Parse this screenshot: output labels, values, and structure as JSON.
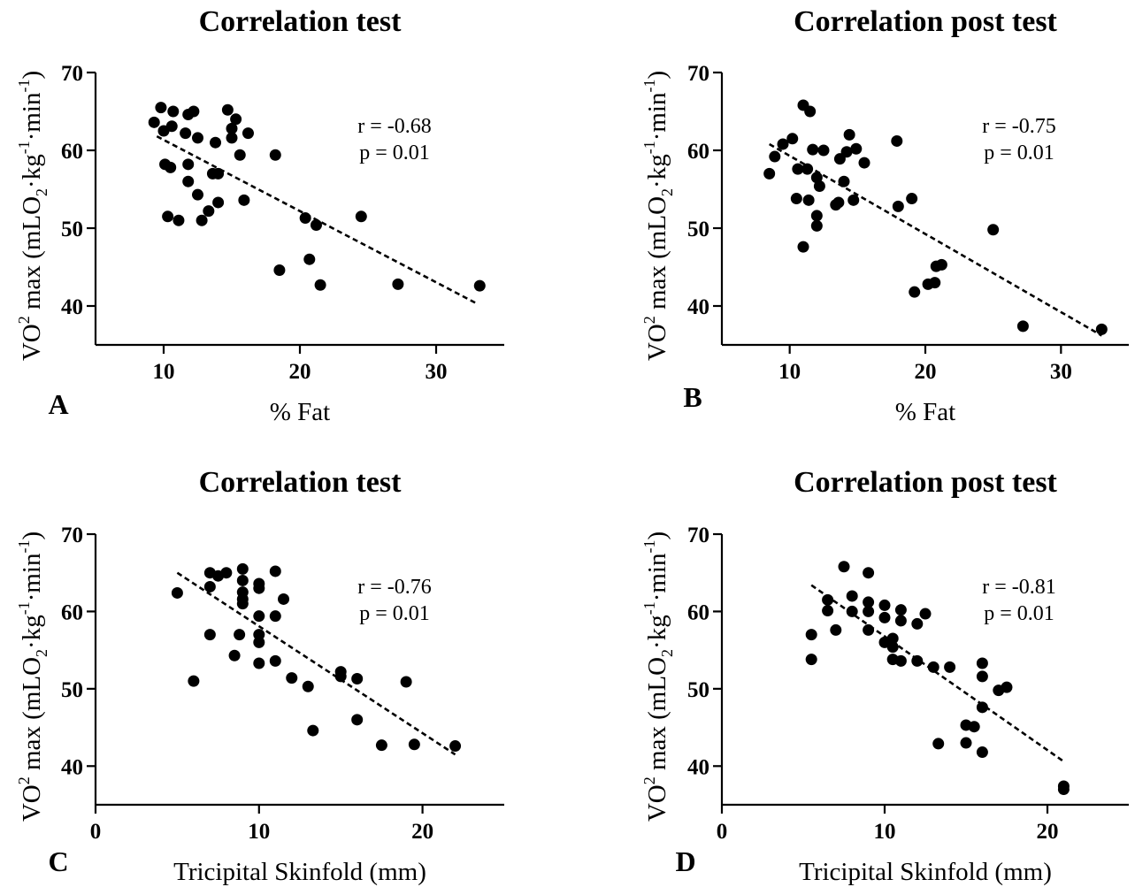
{
  "chart_data": [
    {
      "id": "A",
      "type": "scatter",
      "panel_label": "A",
      "title": "Correlation test",
      "xlabel": "% Fat",
      "ylabel_main": "VO",
      "ylabel_sup": "2",
      "ylabel_rest": " max (mLO",
      "ylabel_sub": "2",
      "ylabel_unit_a": "·kg",
      "ylabel_sup2": "-1",
      "ylabel_unit_b": "·min",
      "ylabel_sup3": "-1",
      "ylabel_close": ")",
      "xlim": [
        5,
        35
      ],
      "ylim": [
        35,
        70
      ],
      "xticks": [
        10,
        20,
        30
      ],
      "yticks": [
        40,
        50,
        60,
        70
      ],
      "annotation_r": "r = -0.68",
      "annotation_p": "p = 0.01",
      "trendline": {
        "x": [
          9.5,
          33
        ],
        "y": [
          61.8,
          40.3
        ]
      },
      "points": [
        {
          "x": 9.3,
          "y": 63.6
        },
        {
          "x": 9.8,
          "y": 65.5
        },
        {
          "x": 10.0,
          "y": 62.5
        },
        {
          "x": 10.6,
          "y": 63.1
        },
        {
          "x": 10.7,
          "y": 65.0
        },
        {
          "x": 11.6,
          "y": 62.2
        },
        {
          "x": 11.8,
          "y": 64.6
        },
        {
          "x": 12.2,
          "y": 65.0
        },
        {
          "x": 12.5,
          "y": 61.6
        },
        {
          "x": 10.1,
          "y": 58.2
        },
        {
          "x": 10.5,
          "y": 57.8
        },
        {
          "x": 11.8,
          "y": 58.2
        },
        {
          "x": 11.8,
          "y": 56.0
        },
        {
          "x": 12.5,
          "y": 54.3
        },
        {
          "x": 10.3,
          "y": 51.5
        },
        {
          "x": 11.1,
          "y": 51.0
        },
        {
          "x": 12.8,
          "y": 51.0
        },
        {
          "x": 13.3,
          "y": 52.2
        },
        {
          "x": 13.6,
          "y": 57.0
        },
        {
          "x": 14.0,
          "y": 57.0
        },
        {
          "x": 13.8,
          "y": 61.0
        },
        {
          "x": 14.0,
          "y": 53.3
        },
        {
          "x": 14.7,
          "y": 65.2
        },
        {
          "x": 15.0,
          "y": 62.8
        },
        {
          "x": 15.0,
          "y": 61.6
        },
        {
          "x": 15.3,
          "y": 64.0
        },
        {
          "x": 15.6,
          "y": 59.4
        },
        {
          "x": 15.9,
          "y": 53.6
        },
        {
          "x": 16.2,
          "y": 62.2
        },
        {
          "x": 18.2,
          "y": 59.4
        },
        {
          "x": 18.5,
          "y": 44.6
        },
        {
          "x": 20.4,
          "y": 51.3
        },
        {
          "x": 20.7,
          "y": 46.0
        },
        {
          "x": 21.2,
          "y": 50.4
        },
        {
          "x": 21.5,
          "y": 42.7
        },
        {
          "x": 24.5,
          "y": 51.5
        },
        {
          "x": 27.2,
          "y": 42.8
        },
        {
          "x": 33.2,
          "y": 42.6
        }
      ]
    },
    {
      "id": "B",
      "type": "scatter",
      "panel_label": "B",
      "title": "Correlation post test",
      "xlabel": "% Fat",
      "ylabel_main": "VO",
      "ylabel_sup": "2",
      "ylabel_rest": " max (mLO",
      "ylabel_sub": "2",
      "ylabel_unit_a": "·kg",
      "ylabel_sup2": "-1",
      "ylabel_unit_b": "·min",
      "ylabel_sup3": "-1",
      "ylabel_close": ")",
      "xlim": [
        5,
        35
      ],
      "ylim": [
        35,
        70
      ],
      "xticks": [
        10,
        20,
        30
      ],
      "yticks": [
        40,
        50,
        60,
        70
      ],
      "annotation_r": "r = -0.75",
      "annotation_p": "p = 0.01",
      "trendline": {
        "x": [
          8.5,
          33
        ],
        "y": [
          60.8,
          36.2
        ]
      },
      "points": [
        {
          "x": 8.5,
          "y": 57.0
        },
        {
          "x": 8.9,
          "y": 59.2
        },
        {
          "x": 9.5,
          "y": 60.8
        },
        {
          "x": 10.2,
          "y": 61.5
        },
        {
          "x": 10.5,
          "y": 53.8
        },
        {
          "x": 10.6,
          "y": 57.6
        },
        {
          "x": 11.0,
          "y": 65.8
        },
        {
          "x": 11.0,
          "y": 47.6
        },
        {
          "x": 11.3,
          "y": 57.6
        },
        {
          "x": 11.4,
          "y": 53.6
        },
        {
          "x": 11.5,
          "y": 65.0
        },
        {
          "x": 11.7,
          "y": 60.1
        },
        {
          "x": 12.0,
          "y": 56.5
        },
        {
          "x": 12.0,
          "y": 51.6
        },
        {
          "x": 12.0,
          "y": 50.3
        },
        {
          "x": 12.2,
          "y": 55.4
        },
        {
          "x": 12.5,
          "y": 60.0
        },
        {
          "x": 13.4,
          "y": 53.0
        },
        {
          "x": 13.6,
          "y": 53.3
        },
        {
          "x": 13.7,
          "y": 58.9
        },
        {
          "x": 14.0,
          "y": 56.0
        },
        {
          "x": 14.2,
          "y": 59.8
        },
        {
          "x": 14.4,
          "y": 62.0
        },
        {
          "x": 14.7,
          "y": 53.6
        },
        {
          "x": 14.9,
          "y": 60.2
        },
        {
          "x": 15.5,
          "y": 58.4
        },
        {
          "x": 17.9,
          "y": 61.2
        },
        {
          "x": 18.0,
          "y": 52.8
        },
        {
          "x": 19.0,
          "y": 53.8
        },
        {
          "x": 19.2,
          "y": 41.8
        },
        {
          "x": 20.2,
          "y": 42.8
        },
        {
          "x": 20.7,
          "y": 43.0
        },
        {
          "x": 20.8,
          "y": 45.1
        },
        {
          "x": 21.2,
          "y": 45.3
        },
        {
          "x": 25.0,
          "y": 49.8
        },
        {
          "x": 27.2,
          "y": 37.4
        },
        {
          "x": 33.0,
          "y": 37.0
        }
      ]
    },
    {
      "id": "C",
      "type": "scatter",
      "panel_label": "C",
      "title": "Correlation test",
      "xlabel": "Tricipital Skinfold (mm)",
      "ylabel_main": "VO",
      "ylabel_sup": "2",
      "ylabel_rest": " max (mLO",
      "ylabel_sub": "2",
      "ylabel_unit_a": "·kg",
      "ylabel_sup2": "-1",
      "ylabel_unit_b": "·min",
      "ylabel_sup3": "-1",
      "ylabel_close": ")",
      "xlim": [
        0,
        25
      ],
      "ylim": [
        35,
        70
      ],
      "xticks": [
        0,
        10,
        20
      ],
      "yticks": [
        40,
        50,
        60,
        70
      ],
      "annotation_r": "r = -0.76",
      "annotation_p": "p = 0.01",
      "trendline": {
        "x": [
          5,
          22
        ],
        "y": [
          65.0,
          41.5
        ]
      },
      "points": [
        {
          "x": 5.0,
          "y": 62.4
        },
        {
          "x": 6.0,
          "y": 51.0
        },
        {
          "x": 7.0,
          "y": 65.0
        },
        {
          "x": 7.0,
          "y": 63.2
        },
        {
          "x": 7.0,
          "y": 57.0
        },
        {
          "x": 7.5,
          "y": 64.6
        },
        {
          "x": 8.0,
          "y": 65.0
        },
        {
          "x": 8.5,
          "y": 54.3
        },
        {
          "x": 8.8,
          "y": 57.0
        },
        {
          "x": 9.0,
          "y": 65.5
        },
        {
          "x": 9.0,
          "y": 64.0
        },
        {
          "x": 9.0,
          "y": 62.5
        },
        {
          "x": 9.0,
          "y": 61.6
        },
        {
          "x": 9.0,
          "y": 61.0
        },
        {
          "x": 10.0,
          "y": 63.6
        },
        {
          "x": 10.0,
          "y": 63.0
        },
        {
          "x": 10.0,
          "y": 59.4
        },
        {
          "x": 10.0,
          "y": 57.0
        },
        {
          "x": 10.0,
          "y": 56.0
        },
        {
          "x": 10.0,
          "y": 53.3
        },
        {
          "x": 11.0,
          "y": 65.2
        },
        {
          "x": 11.0,
          "y": 59.4
        },
        {
          "x": 11.0,
          "y": 53.6
        },
        {
          "x": 11.5,
          "y": 61.6
        },
        {
          "x": 12.0,
          "y": 51.4
        },
        {
          "x": 13.0,
          "y": 50.3
        },
        {
          "x": 13.3,
          "y": 44.6
        },
        {
          "x": 15.0,
          "y": 52.2
        },
        {
          "x": 15.0,
          "y": 51.6
        },
        {
          "x": 16.0,
          "y": 51.3
        },
        {
          "x": 16.0,
          "y": 46.0
        },
        {
          "x": 17.5,
          "y": 42.7
        },
        {
          "x": 19.0,
          "y": 50.9
        },
        {
          "x": 19.5,
          "y": 42.8
        },
        {
          "x": 22.0,
          "y": 42.6
        }
      ]
    },
    {
      "id": "D",
      "type": "scatter",
      "panel_label": "D",
      "title": "Correlation post test",
      "xlabel": "Tricipital Skinfold (mm)",
      "ylabel_main": "VO",
      "ylabel_sup": "2",
      "ylabel_rest": " max (mLO",
      "ylabel_sub": "2",
      "ylabel_unit_a": "·kg",
      "ylabel_sup2": "-1",
      "ylabel_unit_b": "·min",
      "ylabel_sup3": "-1",
      "ylabel_close": ")",
      "xlim": [
        0,
        25
      ],
      "ylim": [
        35,
        70
      ],
      "xticks": [
        0,
        10,
        20
      ],
      "yticks": [
        40,
        50,
        60,
        70
      ],
      "annotation_r": "r = -0.81",
      "annotation_p": "p = 0.01",
      "trendline": {
        "x": [
          5.5,
          21
        ],
        "y": [
          63.4,
          40.6
        ]
      },
      "points": [
        {
          "x": 5.5,
          "y": 57.0
        },
        {
          "x": 5.5,
          "y": 53.8
        },
        {
          "x": 6.5,
          "y": 61.5
        },
        {
          "x": 6.5,
          "y": 60.1
        },
        {
          "x": 7.0,
          "y": 57.6
        },
        {
          "x": 7.5,
          "y": 65.8
        },
        {
          "x": 8.0,
          "y": 62.0
        },
        {
          "x": 8.0,
          "y": 60.0
        },
        {
          "x": 9.0,
          "y": 65.0
        },
        {
          "x": 9.0,
          "y": 61.2
        },
        {
          "x": 9.0,
          "y": 60.0
        },
        {
          "x": 9.0,
          "y": 57.6
        },
        {
          "x": 10.0,
          "y": 60.8
        },
        {
          "x": 10.0,
          "y": 59.2
        },
        {
          "x": 10.0,
          "y": 56.0
        },
        {
          "x": 10.5,
          "y": 56.5
        },
        {
          "x": 10.5,
          "y": 55.4
        },
        {
          "x": 10.5,
          "y": 53.8
        },
        {
          "x": 11.0,
          "y": 60.2
        },
        {
          "x": 11.0,
          "y": 58.8
        },
        {
          "x": 11.0,
          "y": 53.6
        },
        {
          "x": 12.0,
          "y": 58.4
        },
        {
          "x": 12.0,
          "y": 53.6
        },
        {
          "x": 12.5,
          "y": 59.7
        },
        {
          "x": 13.0,
          "y": 52.8
        },
        {
          "x": 13.3,
          "y": 42.9
        },
        {
          "x": 14.0,
          "y": 52.8
        },
        {
          "x": 15.0,
          "y": 45.3
        },
        {
          "x": 15.0,
          "y": 43.0
        },
        {
          "x": 15.5,
          "y": 45.1
        },
        {
          "x": 16.0,
          "y": 53.3
        },
        {
          "x": 16.0,
          "y": 51.6
        },
        {
          "x": 16.0,
          "y": 47.6
        },
        {
          "x": 16.0,
          "y": 41.8
        },
        {
          "x": 17.0,
          "y": 49.8
        },
        {
          "x": 17.5,
          "y": 50.2
        },
        {
          "x": 21.0,
          "y": 37.4
        },
        {
          "x": 21.0,
          "y": 37.0
        }
      ]
    }
  ]
}
